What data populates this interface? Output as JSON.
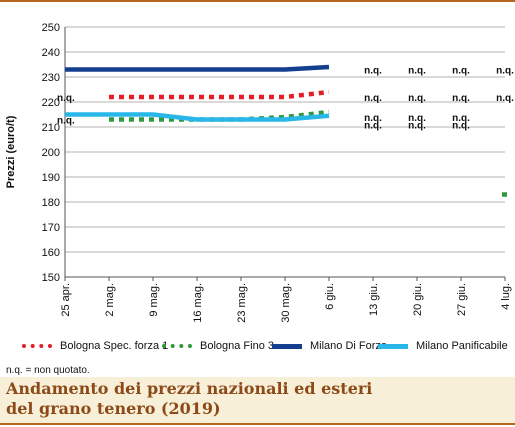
{
  "colors": {
    "bologna_spec": "#e31e24",
    "bologna_fino": "#2e9a3e",
    "milano_forza": "#143f8f",
    "milano_panif": "#29b6e8",
    "title": "#8b4a17",
    "title_bg": "#f8efd8",
    "rule": "#b5651d"
  },
  "chart_data": {
    "type": "line",
    "ylabel": "Prezzi (euro/t)",
    "ylim": [
      150,
      250
    ],
    "yticks": [
      150,
      160,
      170,
      180,
      190,
      200,
      210,
      220,
      230,
      240,
      250
    ],
    "categories": [
      "25 apr.",
      "2 mag.",
      "9 mag.",
      "16 mag.",
      "23 mag.",
      "30 mag.",
      "6 giu.",
      "13 giu.",
      "20 giu.",
      "27 giu.",
      "4 lug."
    ],
    "grid": "horizontal",
    "legend_position": "bottom",
    "series": [
      {
        "name": "Bologna Spec. forza 1",
        "style": "dotted",
        "values": [
          null,
          222,
          222,
          222,
          222,
          222,
          224,
          null,
          null,
          null,
          null
        ]
      },
      {
        "name": "Bologna Fino 3",
        "style": "dotted",
        "values": [
          null,
          213,
          213,
          213,
          213,
          214,
          216,
          null,
          null,
          null,
          183
        ]
      },
      {
        "name": "Milano Di Forza",
        "style": "solid",
        "values": [
          233,
          233,
          233,
          233,
          233,
          233,
          234,
          null,
          null,
          null,
          null
        ]
      },
      {
        "name": "Milano Panificabile",
        "style": "solid",
        "values": [
          215,
          215,
          215,
          213,
          213,
          213,
          214.5,
          null,
          null,
          null,
          null
        ]
      }
    ],
    "annotations": {
      "nq_text": "n.q.",
      "left_nq_values": [
        220,
        211
      ],
      "right_nq_categories": [
        "13 giu.",
        "20 giu.",
        "27 giu.",
        "4 lug."
      ],
      "right_nq_values": [
        233,
        222,
        214,
        211
      ],
      "right_nq_last_values": [
        233,
        222
      ]
    }
  },
  "note": "n.q. = non quotato.",
  "title_line1": "Andamento dei prezzi nazionali ed esteri",
  "title_line2": "del grano tenero (2019)"
}
